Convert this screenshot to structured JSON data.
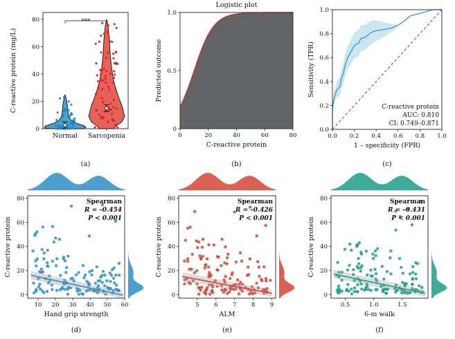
{
  "chart_data": [
    {
      "id": "a",
      "type": "violin",
      "caption": "(a)",
      "ylabel": "C-reactive protein (mg/L)",
      "categories": [
        "Normal",
        "Sarcopenia"
      ],
      "ylim": [
        0,
        85
      ],
      "yticks": [
        0,
        20,
        40,
        60,
        80
      ],
      "significance": "***",
      "colors": [
        "#2e8fc4",
        "#e0463b"
      ],
      "medians": [
        2.5,
        15
      ],
      "maxima": [
        25,
        80
      ]
    },
    {
      "id": "b",
      "type": "area",
      "caption": "(b)",
      "title": "Logistic plot",
      "xlabel": "C-reactive protein",
      "ylabel": "Predicted outcome",
      "xlim": [
        0,
        80
      ],
      "ylim": [
        0,
        1
      ],
      "xticks": [
        0,
        20,
        40,
        60,
        80
      ],
      "yticks": [
        0,
        0.5,
        1.0
      ],
      "ytick_labels": [
        "0",
        "0.5",
        "1.0"
      ],
      "logistic": {
        "intercept": -1.45,
        "slope": 0.145
      },
      "fill": "#626366",
      "line": "#c0392b"
    },
    {
      "id": "c",
      "type": "line",
      "caption": "(c)",
      "xlabel": "1 – specificity (FPR)",
      "ylabel": "Sensitivity (TPR)",
      "xlim": [
        0,
        1
      ],
      "ylim": [
        0,
        1
      ],
      "xticks": [
        0,
        0.2,
        0.4,
        0.6,
        0.8,
        1.0
      ],
      "xtick_labels": [
        "0.0",
        "0.2",
        "0.4",
        "0.6",
        "0.8",
        "1.0"
      ],
      "yticks": [
        0,
        0.2,
        0.4,
        0.6,
        0.8,
        1.0
      ],
      "ytick_labels": [
        "0.0",
        "0.2",
        "0.4",
        "0.6",
        "0.8",
        "1.0"
      ],
      "legend": [
        "C-reactive protein",
        "AUC: 0.810",
        "CI: 0.749–0.871"
      ],
      "color": "#2e8fc4",
      "roc": [
        [
          0,
          0
        ],
        [
          0,
          0.18
        ],
        [
          0.02,
          0.28
        ],
        [
          0.04,
          0.33
        ],
        [
          0.07,
          0.36
        ],
        [
          0.08,
          0.42
        ],
        [
          0.1,
          0.47
        ],
        [
          0.12,
          0.55
        ],
        [
          0.14,
          0.6
        ],
        [
          0.17,
          0.65
        ],
        [
          0.2,
          0.7
        ],
        [
          0.24,
          0.72
        ],
        [
          0.26,
          0.76
        ],
        [
          0.3,
          0.77
        ],
        [
          0.34,
          0.8
        ],
        [
          0.38,
          0.82
        ],
        [
          0.44,
          0.83
        ],
        [
          0.5,
          0.84
        ],
        [
          0.55,
          0.85
        ],
        [
          0.6,
          0.87
        ],
        [
          0.65,
          0.9
        ],
        [
          0.7,
          0.94
        ],
        [
          0.72,
          0.95
        ],
        [
          0.8,
          0.97
        ],
        [
          0.88,
          0.99
        ],
        [
          0.92,
          1.0
        ],
        [
          1.0,
          1.0
        ]
      ]
    },
    {
      "id": "d",
      "type": "scatter",
      "caption": "(d)",
      "xlabel": "Hand grip strength",
      "ylabel": "C-reactive protein",
      "xlim": [
        4,
        60
      ],
      "ylim": [
        -3,
        82
      ],
      "xticks": [
        10,
        20,
        30,
        40,
        50,
        60
      ],
      "yticks": [
        0,
        20,
        40,
        60,
        80
      ],
      "color": "#2e8fc4",
      "annotation": [
        "Spearman",
        "R = –0.454",
        "P < 0.001"
      ],
      "fit": [
        [
          6,
          16
        ],
        [
          59,
          -0.5
        ]
      ],
      "seed": 11
    },
    {
      "id": "e",
      "type": "scatter",
      "caption": "(e)",
      "xlabel": "ALM",
      "ylabel": "C-reactive protein",
      "xlim": [
        4,
        9.2
      ],
      "ylim": [
        -3,
        82
      ],
      "xticks": [
        5,
        6,
        7,
        8,
        9
      ],
      "yticks": [
        0,
        20,
        40,
        60,
        80
      ],
      "color": "#d44535",
      "annotation": [
        "Spearman",
        "R = –0.426",
        "P < 0.001"
      ],
      "fit": [
        [
          4.2,
          15
        ],
        [
          9.0,
          1
        ]
      ],
      "seed": 23
    },
    {
      "id": "f",
      "type": "scatter",
      "caption": "(f)",
      "xlabel": "6-m walk",
      "ylabel": "C-reactive protein",
      "xlim": [
        0.25,
        1.95
      ],
      "ylim": [
        -3,
        82
      ],
      "xticks": [
        0.5,
        1.0,
        1.5
      ],
      "xtick_labels": [
        "0.5",
        "1.0",
        "1.5"
      ],
      "yticks": [
        0,
        20,
        40,
        60,
        80
      ],
      "color": "#1f9b8a",
      "annotation": [
        "Spearman",
        "R = –0.431",
        "P < 0.001"
      ],
      "fit": [
        [
          0.3,
          17
        ],
        [
          1.9,
          1
        ]
      ],
      "seed": 37
    }
  ]
}
